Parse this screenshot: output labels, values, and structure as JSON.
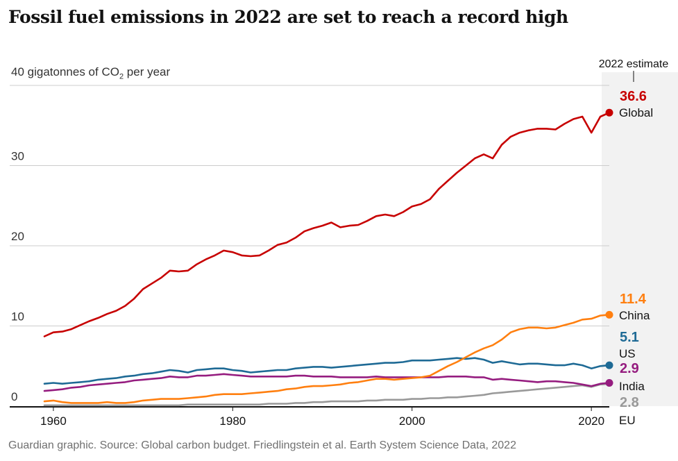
{
  "title": "Fossil fuel emissions in 2022 are set to reach a record high",
  "ylabel_prefix": "40 gigatonnes of CO",
  "ylabel_sub": "2",
  "ylabel_suffix": " per year",
  "source": "Guardian graphic. Source: Global carbon budget. Friedlingstein et al. Earth System Science Data, 2022",
  "estimate_label": "2022 estimate",
  "colors": {
    "Global": "#c70000",
    "China": "#ff7f0f",
    "US": "#1e6a95",
    "India": "#951c7f",
    "EU": "#999999",
    "grid": "#cccccc",
    "axis": "#121212",
    "estimate_band": "#f2f2f2"
  },
  "chart_data": {
    "type": "line",
    "title": "Fossil fuel emissions in 2022 are set to reach a record high",
    "ylabel": "gigatonnes of CO2 per year",
    "xlim": [
      1959,
      2022
    ],
    "ylim": [
      0,
      40
    ],
    "yticks": [
      {
        "value": 0,
        "label": "0"
      },
      {
        "value": 10,
        "label": "10"
      },
      {
        "value": 20,
        "label": "20"
      },
      {
        "value": 30,
        "label": "30"
      }
    ],
    "xticks": [
      {
        "value": 1960,
        "label": "1960"
      },
      {
        "value": 1980,
        "label": "1980"
      },
      {
        "value": 2000,
        "label": "2000"
      },
      {
        "value": 2020,
        "label": "2020"
      }
    ],
    "grid": true,
    "x_start": 1959,
    "series": [
      {
        "name": "Global",
        "final_label": "36.6",
        "values": [
          8.7,
          9.2,
          9.3,
          9.6,
          10.1,
          10.6,
          11.0,
          11.5,
          11.9,
          12.5,
          13.4,
          14.6,
          15.3,
          16.0,
          16.9,
          16.8,
          16.9,
          17.7,
          18.3,
          18.8,
          19.4,
          19.2,
          18.8,
          18.7,
          18.8,
          19.4,
          20.1,
          20.4,
          21.0,
          21.8,
          22.2,
          22.5,
          22.9,
          22.3,
          22.5,
          22.6,
          23.1,
          23.7,
          23.9,
          23.7,
          24.2,
          24.9,
          25.2,
          25.8,
          27.1,
          28.1,
          29.1,
          30.0,
          30.9,
          31.4,
          30.9,
          32.6,
          33.6,
          34.1,
          34.4,
          34.6,
          34.6,
          34.5,
          35.2,
          35.8,
          36.1,
          34.1,
          36.1,
          36.6
        ]
      },
      {
        "name": "China",
        "final_label": "11.4",
        "values": [
          0.6,
          0.7,
          0.5,
          0.4,
          0.4,
          0.4,
          0.4,
          0.5,
          0.4,
          0.4,
          0.5,
          0.7,
          0.8,
          0.9,
          0.9,
          0.9,
          1.0,
          1.1,
          1.2,
          1.4,
          1.5,
          1.5,
          1.5,
          1.6,
          1.7,
          1.8,
          1.9,
          2.1,
          2.2,
          2.4,
          2.5,
          2.5,
          2.6,
          2.7,
          2.9,
          3.0,
          3.2,
          3.4,
          3.4,
          3.3,
          3.4,
          3.5,
          3.6,
          3.8,
          4.4,
          5.0,
          5.5,
          6.1,
          6.7,
          7.2,
          7.6,
          8.3,
          9.2,
          9.6,
          9.8,
          9.8,
          9.7,
          9.8,
          10.1,
          10.4,
          10.8,
          10.9,
          11.3,
          11.4
        ]
      },
      {
        "name": "US",
        "final_label": "5.1",
        "values": [
          2.8,
          2.9,
          2.8,
          2.9,
          3.0,
          3.1,
          3.3,
          3.4,
          3.5,
          3.7,
          3.8,
          4.0,
          4.1,
          4.3,
          4.5,
          4.4,
          4.2,
          4.5,
          4.6,
          4.7,
          4.7,
          4.5,
          4.4,
          4.2,
          4.3,
          4.4,
          4.5,
          4.5,
          4.7,
          4.8,
          4.9,
          4.9,
          4.8,
          4.9,
          5.0,
          5.1,
          5.2,
          5.3,
          5.4,
          5.4,
          5.5,
          5.7,
          5.7,
          5.7,
          5.8,
          5.9,
          6.0,
          5.9,
          6.0,
          5.8,
          5.4,
          5.6,
          5.4,
          5.2,
          5.3,
          5.3,
          5.2,
          5.1,
          5.1,
          5.3,
          5.1,
          4.7,
          5.0,
          5.1
        ]
      },
      {
        "name": "India",
        "final_label": "2.9",
        "values": [
          1.9,
          2.0,
          2.1,
          2.3,
          2.4,
          2.6,
          2.7,
          2.8,
          2.9,
          3.0,
          3.2,
          3.3,
          3.4,
          3.5,
          3.7,
          3.6,
          3.6,
          3.8,
          3.8,
          3.9,
          4.0,
          3.9,
          3.8,
          3.7,
          3.7,
          3.7,
          3.7,
          3.7,
          3.8,
          3.8,
          3.7,
          3.7,
          3.7,
          3.6,
          3.6,
          3.6,
          3.6,
          3.7,
          3.6,
          3.6,
          3.6,
          3.6,
          3.6,
          3.6,
          3.6,
          3.7,
          3.7,
          3.7,
          3.6,
          3.6,
          3.3,
          3.4,
          3.3,
          3.2,
          3.1,
          3.0,
          3.1,
          3.1,
          3.0,
          2.9,
          2.7,
          2.5,
          2.8,
          2.9
        ]
      },
      {
        "name": "EU",
        "final_label": "2.8",
        "values": [
          0.1,
          0.1,
          0.1,
          0.1,
          0.1,
          0.1,
          0.1,
          0.1,
          0.1,
          0.1,
          0.1,
          0.1,
          0.1,
          0.1,
          0.1,
          0.1,
          0.2,
          0.2,
          0.2,
          0.2,
          0.2,
          0.2,
          0.2,
          0.2,
          0.2,
          0.3,
          0.3,
          0.3,
          0.4,
          0.4,
          0.5,
          0.5,
          0.6,
          0.6,
          0.6,
          0.6,
          0.7,
          0.7,
          0.8,
          0.8,
          0.8,
          0.9,
          0.9,
          1.0,
          1.0,
          1.1,
          1.1,
          1.2,
          1.3,
          1.4,
          1.6,
          1.7,
          1.8,
          1.9,
          2.0,
          2.1,
          2.2,
          2.3,
          2.4,
          2.5,
          2.6,
          2.4,
          2.7,
          2.8
        ]
      }
    ]
  }
}
